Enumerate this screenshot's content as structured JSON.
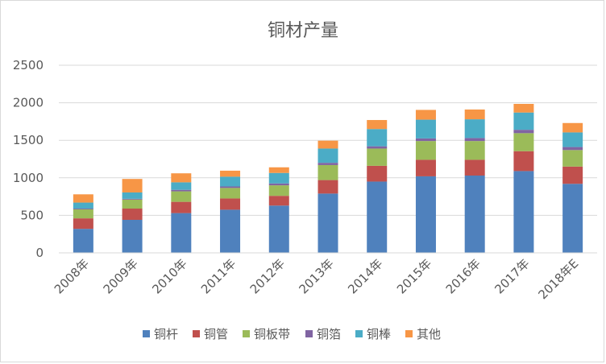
{
  "chart_data": {
    "type": "bar",
    "stacked": true,
    "title": "铜材产量",
    "xlabel": "",
    "ylabel": "",
    "ylim": [
      0,
      2500
    ],
    "yticks": [
      0,
      500,
      1000,
      1500,
      2000,
      2500
    ],
    "grid": true,
    "legend_position": "bottom",
    "categories": [
      "2008年",
      "2009年",
      "2010年",
      "2011年",
      "2012年",
      "2013年",
      "2014年",
      "2015年",
      "2016年",
      "2017年",
      "2018年E"
    ],
    "series": [
      {
        "name": "铜杆",
        "color": "#4f81bd",
        "values": [
          320,
          440,
          530,
          575,
          630,
          790,
          950,
          1020,
          1030,
          1090,
          920
        ]
      },
      {
        "name": "铜管",
        "color": "#c0504d",
        "values": [
          140,
          150,
          150,
          150,
          130,
          180,
          210,
          220,
          210,
          265,
          230
        ]
      },
      {
        "name": "铜板带",
        "color": "#9bbb59",
        "values": [
          120,
          120,
          140,
          140,
          140,
          200,
          230,
          250,
          250,
          240,
          220
        ]
      },
      {
        "name": "铜箔",
        "color": "#8064a2",
        "values": [
          10,
          10,
          20,
          20,
          25,
          30,
          30,
          35,
          40,
          45,
          40
        ]
      },
      {
        "name": "铜棒",
        "color": "#4bacc6",
        "values": [
          80,
          85,
          100,
          130,
          140,
          190,
          230,
          250,
          250,
          230,
          195
        ]
      },
      {
        "name": "其他",
        "color": "#f79646",
        "values": [
          110,
          180,
          120,
          80,
          75,
          105,
          120,
          130,
          130,
          115,
          125
        ]
      }
    ]
  }
}
